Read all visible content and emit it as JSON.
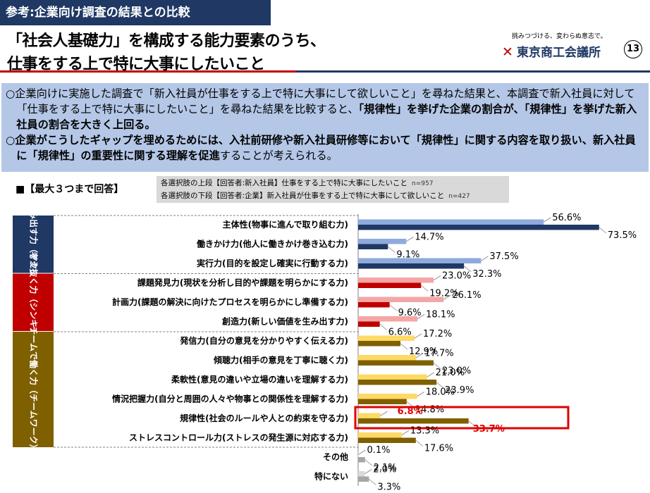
{
  "header": {
    "tag": "参考:企業向け調査の結果との比較",
    "title_line1": "「社会人基礎力」を構成する能力要素のうち、",
    "title_line2": "仕事をする上で特に大事にしたいこと",
    "slogan": "挑みつづける、変わらぬ意志で。",
    "logo_mark": "✕",
    "logo_text": "東京商工会議所",
    "page_number": "⑬"
  },
  "notes": {
    "p1_a": "○企業向けに実施した調査で「新入社員が仕事をする上で特に大事にして欲しいこと」を尋ねた結果と、本調査で新入社員に対して「仕事をする上で特に大事にしたいこと」を尋ねた結果を比較すると、",
    "p1_b": "「規律性」を挙げた企業の割合が、「規律性」を挙げた新入社員の割合を大きく上回る。",
    "p2_a": "○企業がこうしたギャップを埋めるためには、入社前研修や新入社員研修等において「規律性」に関する内容を取り扱い、新入社員に「規律性」の重要性に関する理解を促進",
    "p2_b": "することが考えられる。"
  },
  "legend": {
    "title": "■【最大３つまで回答】",
    "line1": "各選択肢の上段【回答者:新入社員】仕事をする上で特に大事にしたいこと",
    "line1_n": "n=957",
    "line2": "各選択肢の下段【回答者:企業】新入社員が仕事をする上で特に大事にして欲しいこと",
    "line2_n": "n=427"
  },
  "chart_data": {
    "type": "bar",
    "orientation": "horizontal",
    "unit": "%",
    "series": [
      {
        "name": "新入社員",
        "values": [
          56.6,
          14.7,
          37.5,
          23.0,
          26.1,
          18.1,
          17.2,
          17.7,
          21.0,
          18.0,
          6.8,
          13.3,
          0.1,
          2.0
        ]
      },
      {
        "name": "企業",
        "values": [
          73.5,
          9.1,
          32.3,
          19.2,
          9.6,
          6.6,
          12.9,
          23.0,
          23.9,
          14.8,
          33.7,
          17.6,
          2.1,
          3.3
        ]
      }
    ],
    "categories": [
      "主体性(物事に進んで取り組む力)",
      "働きかけ力(他人に働きかけ巻き込む力)",
      "実行力(目的を設定し確実に行動する力)",
      "課題発見力(現状を分析し目的や課題を明らかにする力)",
      "計画力(課題の解決に向けたプロセスを明らかにし準備する力)",
      "創造力(新しい価値を生み出す力)",
      "発信力(自分の意見を分かりやすく伝える力)",
      "傾聴力(相手の意見を丁寧に聴く力)",
      "柔軟性(意見の違いや立場の違いを理解する力)",
      "情況把握力(自分と周囲の人々や物事との関係性を理解する力)",
      "規律性(社会のルールや人との約束を守る力)",
      "ストレスコントロール力(ストレスの発生源に対応する力)",
      "その他",
      "特にない"
    ],
    "value_labels_top": [
      "56.6%",
      "14.7%",
      "37.5%",
      "23.0%",
      "26.1%",
      "18.1%",
      "17.2%",
      "17.7%",
      "21.0%",
      "18.0%",
      "6.8%",
      "13.3%",
      "0.1%",
      "2.0%"
    ],
    "value_labels_bottom": [
      "73.5%",
      "9.1%",
      "32.3%",
      "19.2%",
      "9.6%",
      "6.6%",
      "12.9%",
      "23.0%",
      "23.9%",
      "14.8%",
      "33.7%",
      "17.6%",
      "2.1%",
      "3.3%"
    ],
    "groups": [
      {
        "label": "前に踏み出す力（アクション）",
        "start": 0,
        "end": 2,
        "color": "#1f3864"
      },
      {
        "label": "考え抜く力（シンキング）",
        "start": 3,
        "end": 5,
        "color": "#c00000"
      },
      {
        "label": "チームで働く力（チームワーク）",
        "start": 6,
        "end": 11,
        "color": "#7f6000"
      }
    ],
    "colors": {
      "action_top": "#8faadc",
      "action_bottom": "#1f3864",
      "think_top": "#f4a6a6",
      "think_bottom": "#c00000",
      "team_top": "#ffd966",
      "team_bottom": "#7f6000",
      "other_top": "#d9d9d9",
      "other_bottom": "#a6a6a6",
      "highlight": "#e00000"
    },
    "highlight_index": 10
  }
}
